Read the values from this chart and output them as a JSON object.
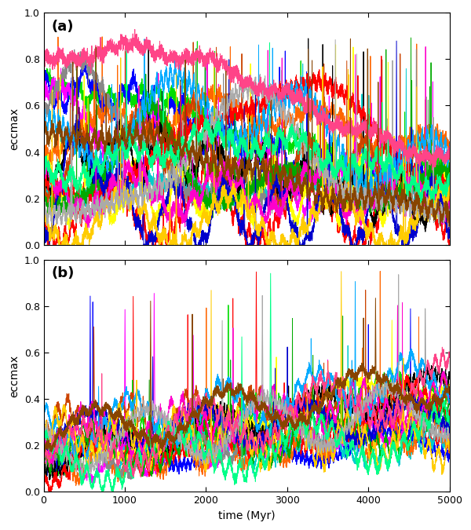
{
  "title_a": "(a)",
  "title_b": "(b)",
  "xlabel": "time (Myr)",
  "ylabel": "eccmax",
  "xlim": [
    0,
    5000
  ],
  "ylim": [
    0,
    1
  ],
  "yticks": [
    0,
    0.2,
    0.4,
    0.6,
    0.8,
    1
  ],
  "xticks": [
    0,
    1000,
    2000,
    3000,
    4000,
    5000
  ],
  "colors": [
    "#ff0000",
    "#00dd00",
    "#0000ff",
    "#ff00ff",
    "#00cccc",
    "#ff6600",
    "#888888",
    "#ffff00",
    "#000000",
    "#cc4400",
    "#ff0000",
    "#00aa00",
    "#0000cc",
    "#ff00cc",
    "#00aaff",
    "#ffcc00",
    "#aaaaaa",
    "#00ff88",
    "#ff4488",
    "#884400"
  ],
  "n_lines": 20,
  "n_points": 5000,
  "figsize": [
    6.0,
    6.75
  ],
  "dpi": 100,
  "linewidth": 0.7,
  "label_fontsize": 10,
  "tick_fontsize": 9,
  "panel_label_fontsize": 13
}
